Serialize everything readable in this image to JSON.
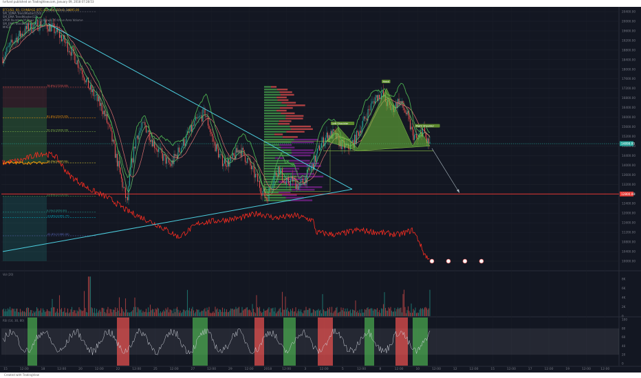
{
  "header": {
    "text": "tvrfund published on TradingView.com, January 09, 2018 07:28:53"
  },
  "info": {
    "symbol_line": "BTCUSD, 60, COINBASE (BTCUSD, 60), ECHO, 14895.00",
    "indicators": [
      "SM_1DMA TrendMaster(150)",
      "SM_EMA TrendMaster(12)",
      "VPVR Number Of Rows 24 Up/Down 70 Value Area Volume",
      "SM_EMA TrendMaster(10)",
      "MACD"
    ]
  },
  "price_axis": {
    "labels": [
      "20400.00",
      "20000.00",
      "19600.00",
      "19200.00",
      "18800.00",
      "18400.00",
      "18000.00",
      "17600.00",
      "17200.00",
      "16800.00",
      "16400.00",
      "16000.00",
      "15600.00",
      "15200.00",
      "14800.00",
      "14400.00",
      "14000.00",
      "13600.00",
      "13200.00",
      "12800.00",
      "12400.00",
      "12000.00",
      "11600.00",
      "11200.00",
      "10800.00",
      "10400.00",
      "10000.00"
    ],
    "current_price": "14898.00",
    "red_level": "12800.00"
  },
  "volume_axis": {
    "labels": [
      "8K",
      "6K",
      "4K",
      "2K",
      "0"
    ]
  },
  "rsi_axis": {
    "labels": [
      "100",
      "80",
      "60",
      "40",
      "20",
      "0"
    ]
  },
  "time_axis": {
    "labels": [
      "15",
      "12:00",
      "18",
      "12:00",
      "20",
      "12:00",
      "22",
      "12:00",
      "25",
      "12:00",
      "27",
      "12:00",
      "29",
      "12:00",
      "2018",
      "12:00",
      "3",
      "12:00",
      "5",
      "12:00",
      "8",
      "12:00",
      "10",
      "12:00",
      "12",
      "12:00",
      "15",
      "12:00",
      "17",
      "12:00",
      "19",
      "12:00",
      "12:00"
    ]
  },
  "fib_labels": [
    {
      "text": "100.0%(20400.00)"
    },
    {
      "text": "78.6%(17250.85)"
    },
    {
      "text": "61.8%(15975.65)"
    },
    {
      "text": "50.0%(15400.00)"
    },
    {
      "text": "38.2%(14097.51)"
    },
    {
      "text": "23.6%(12710.01)"
    },
    {
      "text": "0.0%(12050.00)"
    },
    {
      "text": "-23.6%(12051.77)"
    },
    {
      "text": "-61.8%(11060.00)"
    }
  ],
  "pattern_labels": {
    "head": "Head",
    "left_shoulder": "Left Shoulder",
    "right_shoulder": "Right Shoulder"
  },
  "panel_labels": {
    "volume": "Vol (20)",
    "rsi": "RSI (14, 30, 80)"
  },
  "footer": {
    "text": "Created with TradingView"
  },
  "colors": {
    "background": "#131722",
    "up": "#26a69a",
    "down": "#ef5350",
    "green_line": "#4caf50",
    "red_line": "#ff2d20",
    "triangle": "#4dd0e1",
    "orange": "#ff9800",
    "pattern_fill": "#6fbf3a"
  }
}
